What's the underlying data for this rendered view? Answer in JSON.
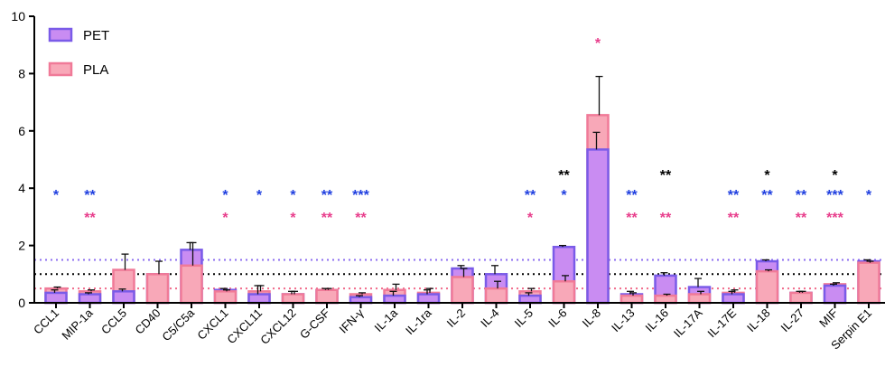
{
  "chart_data": {
    "type": "bar",
    "ylim": [
      0,
      10
    ],
    "yticks": [
      0,
      2,
      4,
      6,
      8,
      10
    ],
    "reference_lines": [
      {
        "value": 1.5,
        "color": "#8b6cf0",
        "style": "dotted"
      },
      {
        "value": 1.0,
        "color": "#000000",
        "style": "dotted"
      },
      {
        "value": 0.5,
        "color": "#f06a8a",
        "style": "dotted"
      }
    ],
    "categories": [
      "CCL1",
      "MIP-1a",
      "CCL5",
      "CD40",
      "C5/C5a",
      "CXCL1",
      "CXCL11",
      "CXCL12",
      "G-CSF",
      "IFN-γ",
      "IL-1a",
      "IL-1ra",
      "IL-2",
      "IL-4",
      "IL-5",
      "IL-6",
      "IL-8",
      "IL-13",
      "IL-16",
      "IL-17A",
      "IL-17E",
      "IL-18",
      "IL-27",
      "MIF",
      "Serpin E1"
    ],
    "series": [
      {
        "name": "PET",
        "fill": "#c98cf2",
        "stroke": "#7a5be8",
        "values": [
          0.35,
          0.3,
          0.4,
          1.0,
          1.85,
          0.45,
          0.3,
          0.3,
          0.45,
          0.2,
          0.25,
          0.3,
          1.2,
          1.0,
          0.25,
          1.95,
          5.35,
          0.3,
          0.95,
          0.55,
          0.3,
          1.45,
          0.35,
          0.6,
          1.45
        ],
        "errors": [
          0.1,
          0.05,
          0.08,
          0.0,
          0.25,
          0.05,
          0.3,
          0.1,
          0.05,
          0.05,
          0.15,
          0.15,
          0.1,
          0.3,
          0.1,
          0.05,
          0.6,
          0.1,
          0.1,
          0.3,
          0.1,
          0.05,
          0.05,
          0.05,
          0.05
        ]
      },
      {
        "name": "PLA",
        "fill": "#f8a8b8",
        "stroke": "#f07a98",
        "values": [
          0.5,
          0.4,
          1.15,
          1.0,
          1.3,
          0.4,
          0.4,
          0.3,
          0.45,
          0.3,
          0.45,
          0.35,
          0.9,
          0.5,
          0.4,
          0.75,
          6.55,
          0.25,
          0.25,
          0.3,
          0.35,
          1.1,
          0.35,
          0.65,
          1.4
        ],
        "errors": [
          0.05,
          0.05,
          0.55,
          0.45,
          0.8,
          0.05,
          0.2,
          0.1,
          0.05,
          0.05,
          0.2,
          0.15,
          0.3,
          0.25,
          0.1,
          0.2,
          1.35,
          0.1,
          0.05,
          0.1,
          0.1,
          0.05,
          0.05,
          0.05,
          0.05
        ]
      }
    ],
    "significance": [
      {
        "category": "CCL1",
        "row": 1,
        "text": "*",
        "color": "#1f3fe0"
      },
      {
        "category": "MIP-1a",
        "row": 1,
        "text": "**",
        "color": "#1f3fe0"
      },
      {
        "category": "MIP-1a",
        "row": 2,
        "text": "**",
        "color": "#e83e8c"
      },
      {
        "category": "CXCL1",
        "row": 1,
        "text": "*",
        "color": "#1f3fe0"
      },
      {
        "category": "CXCL1",
        "row": 2,
        "text": "*",
        "color": "#e83e8c"
      },
      {
        "category": "CXCL11",
        "row": 1,
        "text": "*",
        "color": "#1f3fe0"
      },
      {
        "category": "CXCL12",
        "row": 1,
        "text": "*",
        "color": "#1f3fe0"
      },
      {
        "category": "CXCL12",
        "row": 2,
        "text": "*",
        "color": "#e83e8c"
      },
      {
        "category": "G-CSF",
        "row": 1,
        "text": "**",
        "color": "#1f3fe0"
      },
      {
        "category": "G-CSF",
        "row": 2,
        "text": "**",
        "color": "#e83e8c"
      },
      {
        "category": "IFN-γ",
        "row": 1,
        "text": "***",
        "color": "#1f3fe0"
      },
      {
        "category": "IFN-γ",
        "row": 2,
        "text": "**",
        "color": "#e83e8c"
      },
      {
        "category": "IL-5",
        "row": 1,
        "text": "**",
        "color": "#1f3fe0"
      },
      {
        "category": "IL-5",
        "row": 2,
        "text": "*",
        "color": "#e83e8c"
      },
      {
        "category": "IL-6",
        "row": 0,
        "text": "**",
        "color": "#000000"
      },
      {
        "category": "IL-6",
        "row": 1,
        "text": "*",
        "color": "#1f3fe0"
      },
      {
        "category": "IL-8",
        "row": 3,
        "text": "*",
        "color": "#e83e8c"
      },
      {
        "category": "IL-13",
        "row": 1,
        "text": "**",
        "color": "#1f3fe0"
      },
      {
        "category": "IL-13",
        "row": 2,
        "text": "**",
        "color": "#e83e8c"
      },
      {
        "category": "IL-16",
        "row": 0,
        "text": "**",
        "color": "#000000"
      },
      {
        "category": "IL-16",
        "row": 2,
        "text": "**",
        "color": "#e83e8c"
      },
      {
        "category": "IL-17E",
        "row": 1,
        "text": "**",
        "color": "#1f3fe0"
      },
      {
        "category": "IL-17E",
        "row": 2,
        "text": "**",
        "color": "#e83e8c"
      },
      {
        "category": "IL-18",
        "row": 0,
        "text": "*",
        "color": "#000000"
      },
      {
        "category": "IL-18",
        "row": 1,
        "text": "**",
        "color": "#1f3fe0"
      },
      {
        "category": "IL-27",
        "row": 1,
        "text": "**",
        "color": "#1f3fe0"
      },
      {
        "category": "IL-27",
        "row": 2,
        "text": "**",
        "color": "#e83e8c"
      },
      {
        "category": "MIF",
        "row": 0,
        "text": "*",
        "color": "#000000"
      },
      {
        "category": "MIF",
        "row": 1,
        "text": "***",
        "color": "#1f3fe0"
      },
      {
        "category": "MIF",
        "row": 2,
        "text": "***",
        "color": "#e83e8c"
      },
      {
        "category": "Serpin E1",
        "row": 1,
        "text": "*",
        "color": "#1f3fe0"
      }
    ],
    "legend_position": "top-left",
    "grid": false
  }
}
